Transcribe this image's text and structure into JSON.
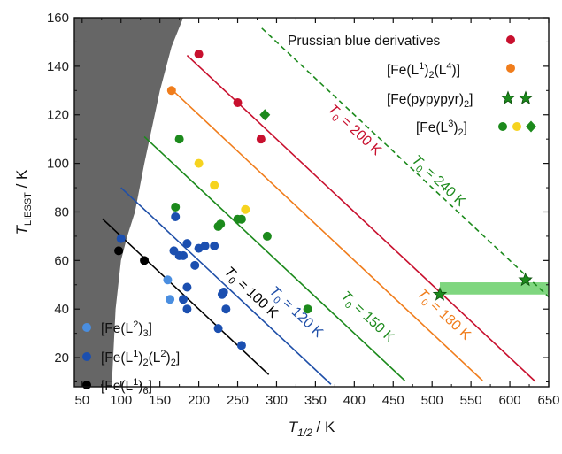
{
  "chart_data": {
    "type": "scatter",
    "xlabel": "T1/2 / K",
    "ylabel": "TLIESST / K",
    "xlim": [
      40,
      650
    ],
    "ylim": [
      8,
      160
    ],
    "x_ticks": [
      "50",
      "100",
      "150",
      "200",
      "250",
      "300",
      "350",
      "400",
      "450",
      "500",
      "550",
      "600",
      "650"
    ],
    "y_ticks": [
      "20",
      "40",
      "60",
      "80",
      "100",
      "120",
      "140",
      "160"
    ],
    "grid": false,
    "legend_position": "inside",
    "lines": [
      {
        "name": "T0 = 100 K",
        "T0": 100,
        "slope": -0.3,
        "color": "#000000",
        "label": "T0 = 100 K",
        "x_start": 76,
        "x_end": 290,
        "dashed": false
      },
      {
        "name": "T0 = 120 K",
        "T0": 120,
        "slope": -0.3,
        "color": "#1f4fa8",
        "label": "T0 = 120 K",
        "x_start": 100,
        "x_end": 370,
        "dashed": false
      },
      {
        "name": "T0 = 150 K",
        "T0": 150,
        "slope": -0.3,
        "color": "#1c8a1c",
        "label": "T0 = 150 K",
        "x_start": 130,
        "x_end": 465,
        "dashed": false
      },
      {
        "name": "T0 = 180 K",
        "T0": 180,
        "slope": -0.3,
        "color": "#f07d1c",
        "label": "T0 = 180 K",
        "x_start": 163,
        "x_end": 565,
        "dashed": false
      },
      {
        "name": "T0 = 200 K",
        "T0": 200,
        "slope": -0.3,
        "color": "#c8102e",
        "label": "T0 = 200 K",
        "x_start": 185,
        "x_end": 633,
        "dashed": false
      },
      {
        "name": "T0 = 240 K",
        "T0": 240,
        "slope": -0.3,
        "color": "#1c8a1c",
        "label": "T0 = 240 K",
        "x_start": 281,
        "x_end": 650,
        "dashed": true
      }
    ],
    "shaded_regions": [
      {
        "name": "excluded-region",
        "color": "#666666",
        "polygon": [
          [
            40,
            160
          ],
          [
            40,
            8
          ],
          [
            88,
            8
          ],
          [
            93,
            40
          ],
          [
            100,
            60
          ],
          [
            108,
            70
          ],
          [
            118,
            80
          ],
          [
            130,
            100
          ],
          [
            150,
            130
          ],
          [
            165,
            148
          ],
          [
            180,
            160
          ]
        ]
      },
      {
        "name": "green-band",
        "color": "#7fd67f",
        "x_range": [
          510,
          650
        ],
        "y_range": [
          46,
          51
        ]
      }
    ],
    "series": [
      {
        "name": "Prussian blue derivatives",
        "color": "#c8102e",
        "marker": "circle",
        "points": [
          [
            200,
            145
          ],
          [
            250,
            125
          ],
          [
            280,
            110
          ]
        ]
      },
      {
        "name": "[Fe(L1)2(L4)]",
        "color": "#f07d1c",
        "marker": "circle",
        "points": [
          [
            165,
            130
          ]
        ]
      },
      {
        "name": "[Fe(pypypyr)2]",
        "color": "#1c8a1c",
        "marker": "star",
        "points": [
          [
            510,
            46
          ],
          [
            620,
            52
          ]
        ]
      },
      {
        "name": "[Fe(L3)2]",
        "color": "#1c8a1c",
        "marker": "circle",
        "points": [
          [
            175,
            110
          ],
          [
            170,
            82
          ],
          [
            225,
            74
          ],
          [
            228,
            75
          ],
          [
            250,
            77
          ],
          [
            255,
            77
          ],
          [
            288,
            70
          ],
          [
            340,
            40
          ]
        ]
      },
      {
        "name": "[Fe(L3)2]",
        "color": "#f6d31f",
        "marker": "circle",
        "points": [
          [
            200,
            100
          ],
          [
            220,
            91
          ],
          [
            260,
            81
          ]
        ]
      },
      {
        "name": "[Fe(L3)2]",
        "color": "#1c8a1c",
        "marker": "diamond",
        "points": [
          [
            285,
            120
          ]
        ]
      },
      {
        "name": "[Fe(L2)3]",
        "color": "#4a8ee0",
        "marker": "circle",
        "points": [
          [
            160,
            52
          ],
          [
            163,
            44
          ]
        ]
      },
      {
        "name": "[Fe(L1)2(L2)2]",
        "color": "#1b4fb0",
        "marker": "circle",
        "points": [
          [
            100,
            69
          ],
          [
            170,
            78
          ],
          [
            185,
            67
          ],
          [
            168,
            64
          ],
          [
            175,
            62
          ],
          [
            180,
            62
          ],
          [
            195,
            58
          ],
          [
            200,
            65
          ],
          [
            208,
            66
          ],
          [
            220,
            66
          ],
          [
            185,
            49
          ],
          [
            180,
            44
          ],
          [
            185,
            40
          ],
          [
            230,
            46
          ],
          [
            232,
            47
          ],
          [
            235,
            40
          ],
          [
            225,
            32
          ],
          [
            255,
            25
          ]
        ]
      },
      {
        "name": "[Fe(L1)6]",
        "color": "#000000",
        "marker": "circle",
        "points": [
          [
            97,
            64
          ],
          [
            130,
            60
          ]
        ]
      }
    ],
    "legend_top": [
      {
        "name": "Prussian blue derivatives",
        "markers": [
          {
            "marker": "circle",
            "color": "#c8102e"
          }
        ]
      },
      {
        "name": "[Fe(L1)2(L4)]",
        "base": "[Fe(L",
        "sup1": "1",
        "mid": ")",
        "sub1": "2",
        "mid2": "(L",
        "sup2": "4",
        "end": ")]",
        "markers": [
          {
            "marker": "circle",
            "color": "#f07d1c"
          }
        ]
      },
      {
        "name": "[Fe(pypypyr)2]",
        "markers": [
          {
            "marker": "star",
            "color": "#1c8a1c"
          },
          {
            "marker": "star",
            "color": "#1c8a1c"
          }
        ]
      },
      {
        "name": "[Fe(L3)2]",
        "markers": [
          {
            "marker": "circle",
            "color": "#1c8a1c"
          },
          {
            "marker": "circle",
            "color": "#f6d31f"
          },
          {
            "marker": "diamond",
            "color": "#1c8a1c"
          }
        ]
      }
    ],
    "legend_bottom": [
      {
        "name": "[Fe(L2)3]",
        "color": "#4a8ee0"
      },
      {
        "name": "[Fe(L1)2(L2)2]",
        "color": "#1b4fb0"
      },
      {
        "name": "[Fe(L1)6]",
        "color": "#000000"
      }
    ]
  }
}
